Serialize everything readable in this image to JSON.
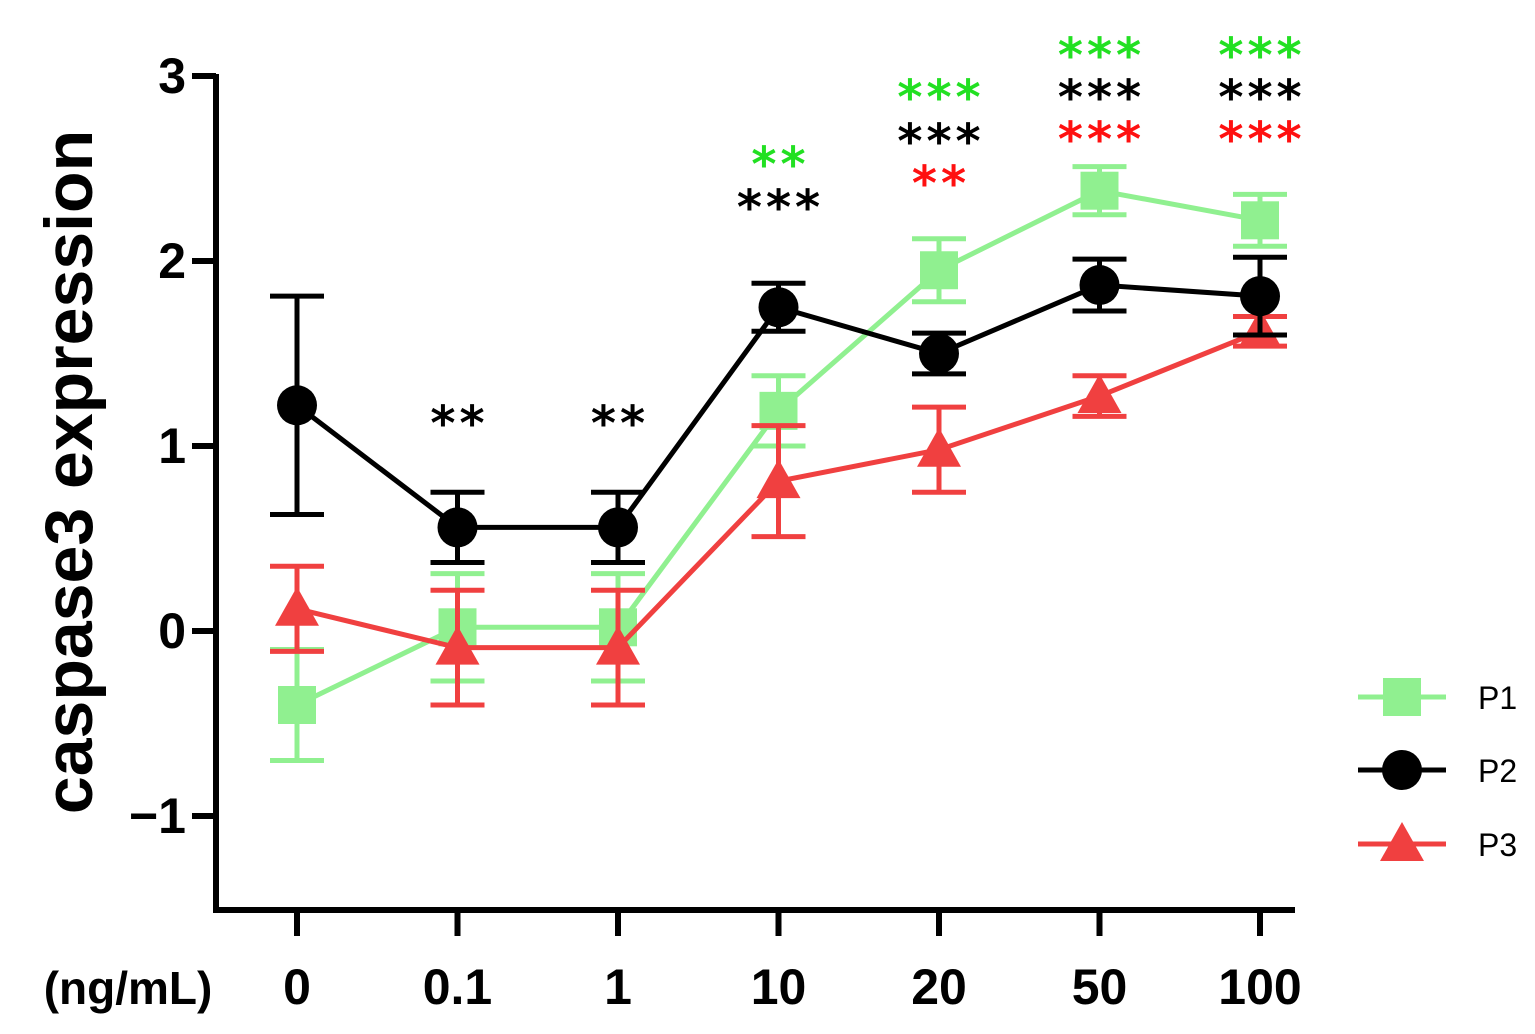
{
  "chart_data": {
    "type": "line",
    "title": "",
    "xlabel": "",
    "x_unit_label": "(ng/mL)",
    "ylabel": "caspase3 expression",
    "categories": [
      "0",
      "0.1",
      "1",
      "10",
      "20",
      "50",
      "100"
    ],
    "ylim": [
      -1.5,
      3
    ],
    "yticks": [
      -1,
      0,
      1,
      2,
      3
    ],
    "ytick_labels": [
      "−1",
      "0",
      "1",
      "2",
      "3"
    ],
    "grid": false,
    "legend_position": "right",
    "series": [
      {
        "name": "P1",
        "color": "#90f090",
        "marker": "square",
        "values": [
          -0.4,
          0.02,
          0.02,
          1.19,
          1.95,
          2.38,
          2.22
        ],
        "errors": [
          0.3,
          0.29,
          0.29,
          0.19,
          0.17,
          0.13,
          0.14
        ]
      },
      {
        "name": "P2",
        "color": "#000000",
        "marker": "circle",
        "values": [
          1.22,
          0.56,
          0.56,
          1.75,
          1.5,
          1.87,
          1.81
        ],
        "errors": [
          0.59,
          0.19,
          0.19,
          0.13,
          0.11,
          0.14,
          0.21
        ]
      },
      {
        "name": "P3",
        "color": "#f04040",
        "marker": "triangle",
        "values": [
          0.12,
          -0.09,
          -0.09,
          0.81,
          0.98,
          1.27,
          1.62
        ],
        "errors": [
          0.23,
          0.31,
          0.31,
          0.3,
          0.23,
          0.11,
          0.08
        ]
      }
    ],
    "annotations": [
      {
        "category": 1,
        "rows": [
          {
            "text": "**",
            "color": "#000000"
          }
        ]
      },
      {
        "category": 2,
        "rows": [
          {
            "text": "**",
            "color": "#000000"
          }
        ]
      },
      {
        "category": 3,
        "rows": [
          {
            "text": "**",
            "color": "#22e022"
          },
          {
            "text": "***",
            "color": "#000000"
          }
        ]
      },
      {
        "category": 4,
        "rows": [
          {
            "text": "***",
            "color": "#22e022"
          },
          {
            "text": "***",
            "color": "#000000"
          },
          {
            "text": "**",
            "color": "#ff1010"
          }
        ]
      },
      {
        "category": 5,
        "rows": [
          {
            "text": "***",
            "color": "#22e022"
          },
          {
            "text": "***",
            "color": "#000000"
          },
          {
            "text": "***",
            "color": "#ff1010"
          }
        ]
      },
      {
        "category": 6,
        "rows": [
          {
            "text": "***",
            "color": "#22e022"
          },
          {
            "text": "***",
            "color": "#000000"
          },
          {
            "text": "***",
            "color": "#ff1010"
          }
        ]
      }
    ]
  }
}
